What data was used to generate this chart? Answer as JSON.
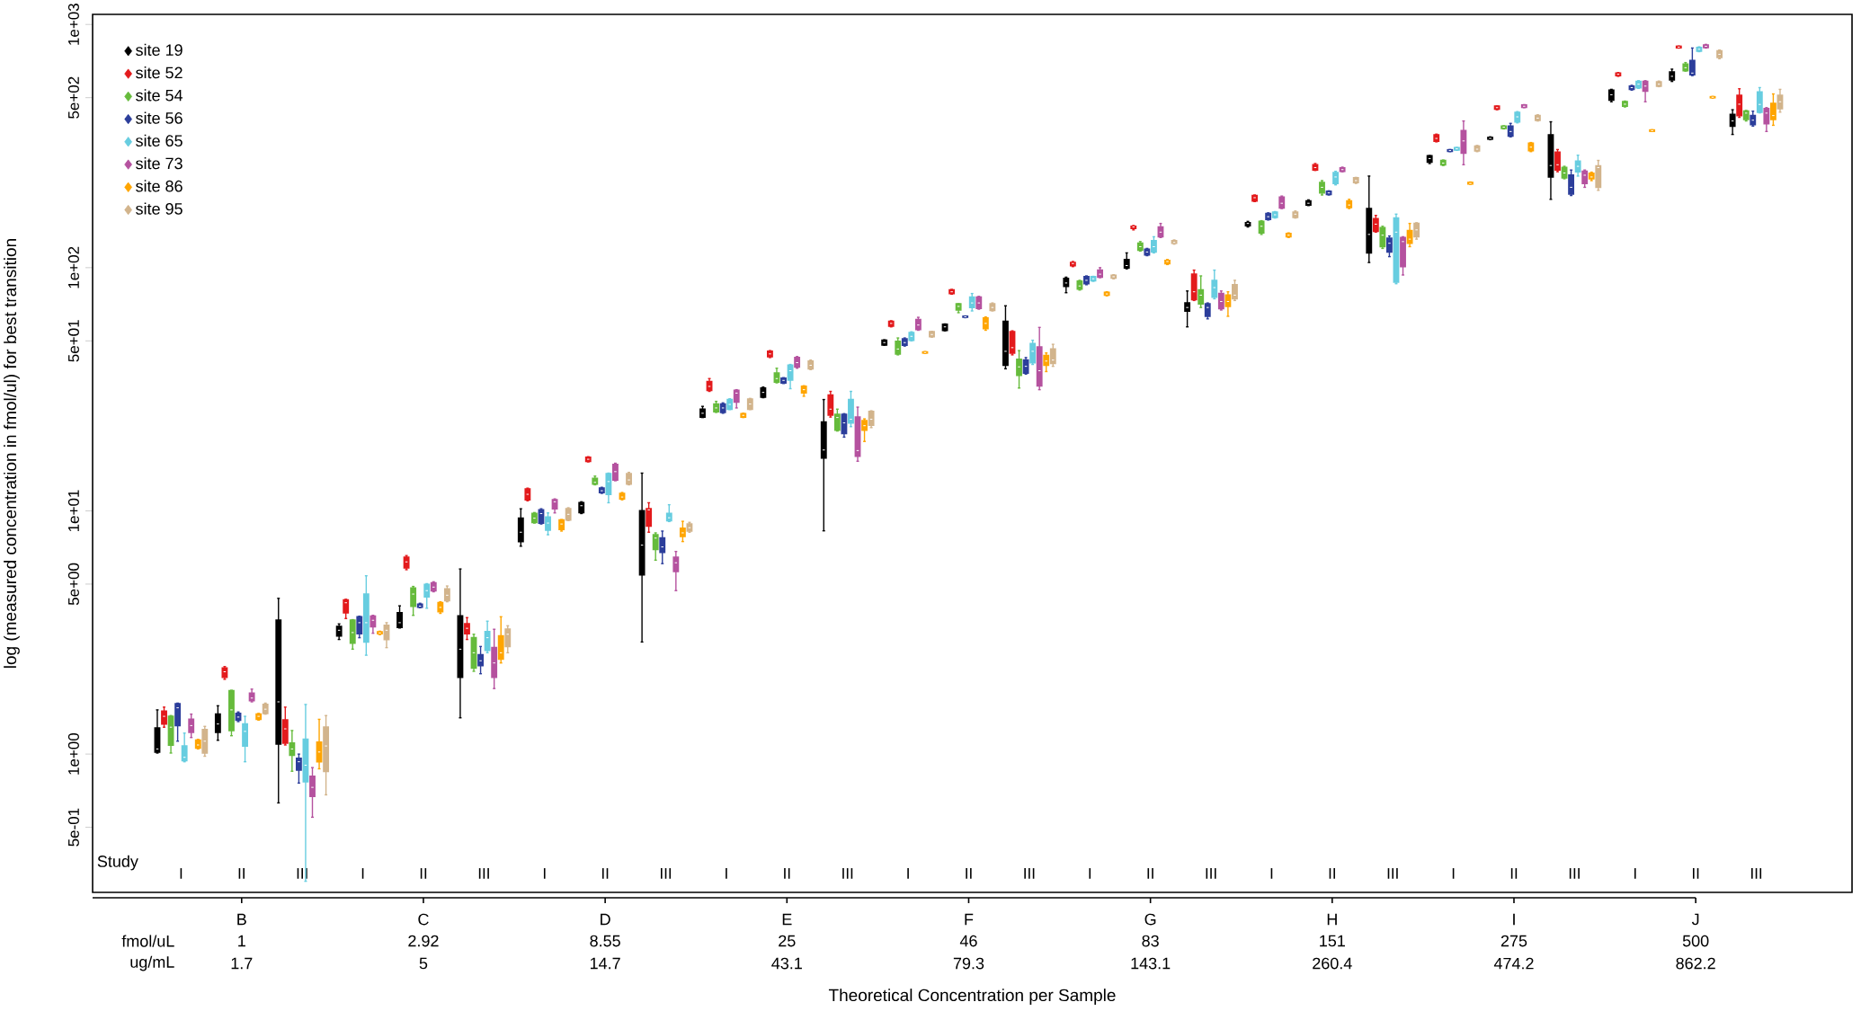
{
  "chart_data": {
    "type": "box",
    "ylabel": "log (measured concentration in fmol/ul) for best transition",
    "categories": [
      "I",
      "II",
      "III",
      "I",
      "II",
      "III",
      "I",
      "II",
      "III",
      "I",
      "II",
      "III",
      "I",
      "II",
      "III",
      "I",
      "II",
      "III",
      "I",
      "II",
      "III",
      "I",
      "II",
      "III",
      "I",
      "II",
      "III"
    ],
    "log": "y",
    "ylim": [
      0.27,
      1100
    ],
    "yticks": [
      {
        "value": 0.5,
        "label": "5e-01"
      },
      {
        "value": 1,
        "label": "1e+00"
      },
      {
        "value": 5,
        "label": "5e+00"
      },
      {
        "value": 10,
        "label": "1e+01"
      },
      {
        "value": 50,
        "label": "5e+01"
      },
      {
        "value": 100,
        "label": "1e+02"
      },
      {
        "value": 500,
        "label": "5e+02"
      },
      {
        "value": 1000,
        "label": "1e+03"
      }
    ],
    "legend": "top left",
    "annotations": [
      "Study",
      "fmol/uL",
      "ug/mL",
      "B",
      "C",
      "D",
      "E",
      "F",
      "G",
      "H",
      "I",
      "J",
      "1",
      "2.92",
      "8.55",
      "25",
      "46",
      "83",
      "151",
      "275",
      "500",
      "1.7",
      "5",
      "14.7",
      "43.1",
      "79.3",
      "143.1",
      "260.4",
      "474.2",
      "862.2",
      "Theoretical Concentration per Sample"
    ],
    "series": [
      {
        "name": "site 19",
        "color": "#000000",
        "boxes": [
          {
            "low": 1.01,
            "q1": 1.02,
            "median": 1.05,
            "q3": 1.28,
            "high": 1.52
          },
          {
            "low": 1.14,
            "q1": 1.23,
            "median": 1.33,
            "q3": 1.46,
            "high": 1.58
          },
          {
            "low": 0.63,
            "q1": 1.1,
            "median": 1.64,
            "q3": 3.55,
            "high": 4.37
          },
          {
            "low": 2.96,
            "q1": 3.06,
            "median": 3.23,
            "q3": 3.35,
            "high": 3.43
          },
          {
            "low": 3.3,
            "q1": 3.32,
            "median": 3.47,
            "q3": 3.81,
            "high": 4.07
          },
          {
            "low": 1.41,
            "q1": 2.07,
            "median": 2.7,
            "q3": 3.7,
            "high": 5.77
          },
          {
            "low": 7.16,
            "q1": 7.48,
            "median": 8.17,
            "q3": 9.33,
            "high": 10.2
          },
          {
            "low": 9.75,
            "q1": 9.84,
            "median": 10.5,
            "q3": 10.8,
            "high": 10.9
          },
          {
            "low": 2.89,
            "q1": 5.46,
            "median": 7.23,
            "q3": 10.0,
            "high": 14.3
          },
          {
            "low": 24.2,
            "q1": 24.3,
            "median": 25.2,
            "q3": 26.2,
            "high": 26.9
          },
          {
            "low": 29.2,
            "q1": 29.4,
            "median": 30.7,
            "q3": 32.0,
            "high": 32.3
          },
          {
            "low": 8.28,
            "q1": 16.5,
            "median": 17.8,
            "q3": 23.2,
            "high": 28.7
          },
          {
            "low": 48.0,
            "q1": 48.1,
            "median": 49.2,
            "q3": 50.3,
            "high": 50.5
          },
          {
            "low": 55.0,
            "q1": 55.3,
            "median": 57.1,
            "q3": 58.5,
            "high": 58.7
          },
          {
            "low": 38.4,
            "q1": 39.7,
            "median": 45.3,
            "q3": 60.1,
            "high": 69.7
          },
          {
            "low": 78.9,
            "q1": 83.8,
            "median": 86.5,
            "q3": 90.3,
            "high": 91.4
          },
          {
            "low": 98.9,
            "q1": 99.8,
            "median": 102,
            "q3": 108,
            "high": 115
          },
          {
            "low": 57.1,
            "q1": 66.4,
            "median": 68.6,
            "q3": 71.6,
            "high": 80.2
          },
          {
            "low": 147,
            "q1": 149,
            "median": 152,
            "q3": 153,
            "high": 155
          },
          {
            "low": 180,
            "q1": 181,
            "median": 184,
            "q3": 188,
            "high": 190
          },
          {
            "low": 105,
            "q1": 115,
            "median": 137,
            "q3": 175,
            "high": 238
          },
          {
            "low": 268,
            "q1": 272,
            "median": 281,
            "q3": 288,
            "high": 289
          },
          {
            "low": 336,
            "q1": 338,
            "median": 340,
            "q3": 343,
            "high": 345
          },
          {
            "low": 191,
            "q1": 236,
            "median": 263,
            "q3": 351,
            "high": 398
          },
          {
            "low": 481,
            "q1": 489,
            "median": 514,
            "q3": 537,
            "high": 541
          },
          {
            "low": 583,
            "q1": 592,
            "median": 612,
            "q3": 638,
            "high": 655
          },
          {
            "low": 353,
            "q1": 382,
            "median": 401,
            "q3": 426,
            "high": 446
          }
        ]
      },
      {
        "name": "site 52",
        "color": "#e31a1c",
        "boxes": [
          {
            "low": 1.29,
            "q1": 1.33,
            "median": 1.43,
            "q3": 1.5,
            "high": 1.56
          },
          {
            "low": 2.03,
            "q1": 2.07,
            "median": 2.18,
            "q3": 2.26,
            "high": 2.29
          },
          {
            "low": 1.09,
            "q1": 1.11,
            "median": 1.27,
            "q3": 1.38,
            "high": 1.56
          },
          {
            "low": 3.61,
            "q1": 3.81,
            "median": 4.19,
            "q3": 4.3,
            "high": 4.33
          },
          {
            "low": 5.73,
            "q1": 5.83,
            "median": 6.17,
            "q3": 6.44,
            "high": 6.55
          },
          {
            "low": 2.96,
            "q1": 3.13,
            "median": 3.29,
            "q3": 3.43,
            "high": 3.64
          },
          {
            "low": 11.0,
            "q1": 11.1,
            "median": 11.7,
            "q3": 12.3,
            "high": 12.4
          },
          {
            "low": 15.9,
            "q1": 16.0,
            "median": 16.3,
            "q3": 16.6,
            "high": 16.7
          },
          {
            "low": 8.17,
            "q1": 8.67,
            "median": 10.1,
            "q3": 10.2,
            "high": 10.8
          },
          {
            "low": 31.0,
            "q1": 31.3,
            "median": 32.5,
            "q3": 34.0,
            "high": 35.0
          },
          {
            "low": 42.7,
            "q1": 43.1,
            "median": 44.2,
            "q3": 45.3,
            "high": 45.6
          },
          {
            "low": 24.3,
            "q1": 24.8,
            "median": 26.2,
            "q3": 29.9,
            "high": 31.0
          },
          {
            "low": 57.1,
            "q1": 57.5,
            "median": 59.0,
            "q3": 60.1,
            "high": 60.5
          },
          {
            "low": 77.8,
            "q1": 78.3,
            "median": 79.6,
            "q3": 80.9,
            "high": 81.4
          },
          {
            "low": 43.8,
            "q1": 44.6,
            "median": 46.9,
            "q3": 54.5,
            "high": 55.0
          },
          {
            "low": 101,
            "q1": 102,
            "median": 104,
            "q3": 105,
            "high": 106
          },
          {
            "low": 143,
            "q1": 145,
            "median": 147,
            "q3": 148,
            "high": 149
          },
          {
            "low": 73.3,
            "q1": 73.9,
            "median": 79.6,
            "q3": 94.0,
            "high": 97.7
          },
          {
            "low": 187,
            "q1": 188,
            "median": 194,
            "q3": 198,
            "high": 199
          },
          {
            "low": 251,
            "q1": 252,
            "median": 258,
            "q3": 265,
            "high": 268
          },
          {
            "low": 140,
            "q1": 141,
            "median": 151,
            "q3": 159,
            "high": 164
          },
          {
            "low": 329,
            "q1": 331,
            "median": 340,
            "q3": 351,
            "high": 354
          },
          {
            "low": 446,
            "q1": 449,
            "median": 455,
            "q3": 461,
            "high": 462
          },
          {
            "low": 248,
            "q1": 252,
            "median": 265,
            "q3": 298,
            "high": 306
          },
          {
            "low": 612,
            "q1": 616,
            "median": 624,
            "q3": 631,
            "high": 634
          },
          {
            "low": 800,
            "q1": 802,
            "median": 807,
            "q3": 813,
            "high": 815
          },
          {
            "low": 415,
            "q1": 422,
            "median": 470,
            "q3": 511,
            "high": 544
          }
        ]
      },
      {
        "name": "site 54",
        "color": "#66bb3c",
        "boxes": [
          {
            "low": 1.01,
            "q1": 1.09,
            "median": 1.29,
            "q3": 1.43,
            "high": 1.44
          },
          {
            "low": 1.19,
            "q1": 1.25,
            "median": 1.52,
            "q3": 1.82,
            "high": 1.83
          },
          {
            "low": 0.85,
            "q1": 0.99,
            "median": 1.05,
            "q3": 1.11,
            "high": 1.25
          },
          {
            "low": 2.7,
            "q1": 2.86,
            "median": 3.16,
            "q3": 3.55,
            "high": 3.57
          },
          {
            "low": 3.72,
            "q1": 4.05,
            "median": 4.55,
            "q3": 4.81,
            "high": 4.89
          },
          {
            "low": 2.19,
            "q1": 2.26,
            "median": 2.61,
            "q3": 3.01,
            "high": 3.11
          },
          {
            "low": 8.91,
            "q1": 8.97,
            "median": 9.33,
            "q3": 9.75,
            "high": 9.84
          },
          {
            "low": 12.8,
            "q1": 12.9,
            "median": 13.1,
            "q3": 13.6,
            "high": 13.9
          },
          {
            "low": 6.27,
            "q1": 6.95,
            "median": 7.73,
            "q3": 7.98,
            "high": 8.12
          },
          {
            "low": 25.4,
            "q1": 25.6,
            "median": 26.5,
            "q3": 27.5,
            "high": 28.2
          },
          {
            "low": 33.6,
            "q1": 33.9,
            "median": 35.0,
            "q3": 36.9,
            "high": 38.6
          },
          {
            "low": 21.3,
            "q1": 21.5,
            "median": 24.2,
            "q3": 24.9,
            "high": 26.2
          },
          {
            "low": 43.8,
            "q1": 44.2,
            "median": 46.3,
            "q3": 49.7,
            "high": 51.4
          },
          {
            "low": 65.3,
            "q1": 67.0,
            "median": 69.3,
            "q3": 71.0,
            "high": 71.1
          },
          {
            "low": 32.0,
            "q1": 36.1,
            "median": 39.1,
            "q3": 42.0,
            "high": 45.6
          },
          {
            "low": 80.9,
            "q1": 81.7,
            "median": 84.1,
            "q3": 87.9,
            "high": 88.7
          },
          {
            "low": 117,
            "q1": 118,
            "median": 122,
            "q3": 126,
            "high": 128
          },
          {
            "low": 68.6,
            "q1": 71.0,
            "median": 77.1,
            "q3": 80.9,
            "high": 92.5
          },
          {
            "low": 137,
            "q1": 139,
            "median": 148,
            "q3": 155,
            "high": 156
          },
          {
            "low": 199,
            "q1": 203,
            "median": 214,
            "q3": 224,
            "high": 228
          },
          {
            "low": 120,
            "q1": 122,
            "median": 136,
            "q3": 146,
            "high": 148
          },
          {
            "low": 263,
            "q1": 265,
            "median": 269,
            "q3": 276,
            "high": 277
          },
          {
            "low": 372,
            "q1": 374,
            "median": 378,
            "q3": 382,
            "high": 383
          },
          {
            "low": 232,
            "q1": 234,
            "median": 245,
            "q3": 258,
            "high": 261
          },
          {
            "low": 458,
            "q1": 461,
            "median": 470,
            "q3": 481,
            "high": 484
          },
          {
            "low": 643,
            "q1": 646,
            "median": 664,
            "q3": 686,
            "high": 697
          },
          {
            "low": 401,
            "q1": 407,
            "median": 432,
            "q3": 440,
            "high": 443
          }
        ]
      },
      {
        "name": "site 56",
        "color": "#2c3e9b",
        "boxes": [
          {
            "low": 1.13,
            "q1": 1.31,
            "median": 1.55,
            "q3": 1.61,
            "high": 1.62
          },
          {
            "low": 1.36,
            "q1": 1.38,
            "median": 1.42,
            "q3": 1.47,
            "high": 1.49
          },
          {
            "low": 0.76,
            "q1": 0.86,
            "median": 0.93,
            "q3": 0.96,
            "high": 1.0
          },
          {
            "low": 3.01,
            "q1": 3.13,
            "median": 3.47,
            "q3": 3.67,
            "high": 3.69
          },
          {
            "low": 4.0,
            "q1": 4.02,
            "median": 4.06,
            "q3": 4.13,
            "high": 4.17
          },
          {
            "low": 2.14,
            "q1": 2.31,
            "median": 2.42,
            "q3": 2.56,
            "high": 2.77
          },
          {
            "low": 8.83,
            "q1": 8.91,
            "median": 9.75,
            "q3": 10.1,
            "high": 10.2
          },
          {
            "low": 11.8,
            "q1": 11.9,
            "median": 12.1,
            "q3": 12.4,
            "high": 12.5
          },
          {
            "low": 6.07,
            "q1": 6.76,
            "median": 7.11,
            "q3": 7.73,
            "high": 8.26
          },
          {
            "low": 25.2,
            "q1": 25.4,
            "median": 26.5,
            "q3": 27.5,
            "high": 27.8
          },
          {
            "low": 33.4,
            "q1": 33.6,
            "median": 34.4,
            "q3": 35.1,
            "high": 35.3
          },
          {
            "low": 20.1,
            "q1": 20.8,
            "median": 23.0,
            "q3": 24.9,
            "high": 25.1
          },
          {
            "low": 47.6,
            "q1": 48.0,
            "median": 49.2,
            "q3": 50.9,
            "high": 51.4
          },
          {
            "low": 62.3,
            "q1": 62.6,
            "median": 62.8,
            "q3": 63.1,
            "high": 63.3
          },
          {
            "low": 36.5,
            "q1": 36.9,
            "median": 39.3,
            "q3": 41.7,
            "high": 42.7
          },
          {
            "low": 85.1,
            "q1": 85.9,
            "median": 88.7,
            "q3": 91.8,
            "high": 92.5
          },
          {
            "low": 112,
            "q1": 113,
            "median": 116,
            "q3": 119,
            "high": 120
          },
          {
            "low": 61.6,
            "q1": 63.1,
            "median": 68.6,
            "q3": 71.0,
            "high": 71.6
          },
          {
            "low": 157,
            "q1": 158,
            "median": 162,
            "q3": 167,
            "high": 168
          },
          {
            "low": 199,
            "q1": 200,
            "median": 203,
            "q3": 206,
            "high": 207
          },
          {
            "low": 111,
            "q1": 116,
            "median": 126,
            "q3": 132,
            "high": 135
          },
          {
            "low": 300,
            "q1": 301,
            "median": 303,
            "q3": 305,
            "high": 306
          },
          {
            "low": 345,
            "q1": 348,
            "median": 363,
            "q3": 382,
            "high": 392
          },
          {
            "low": 198,
            "q1": 201,
            "median": 214,
            "q3": 240,
            "high": 252
          },
          {
            "low": 537,
            "q1": 541,
            "median": 550,
            "q3": 558,
            "high": 562
          },
          {
            "low": 616,
            "q1": 621,
            "median": 631,
            "q3": 711,
            "high": 800
          },
          {
            "low": 382,
            "q1": 388,
            "median": 404,
            "q3": 422,
            "high": 440
          }
        ]
      },
      {
        "name": "site 65",
        "color": "#67cde0",
        "boxes": [
          {
            "low": 0.93,
            "q1": 0.94,
            "median": 0.97,
            "q3": 1.08,
            "high": 1.22
          },
          {
            "low": 0.93,
            "q1": 1.08,
            "median": 1.24,
            "q3": 1.33,
            "high": 1.43
          },
          {
            "low": 0.3,
            "q1": 0.77,
            "median": 0.9,
            "q3": 1.15,
            "high": 1.6
          },
          {
            "low": 2.55,
            "q1": 2.89,
            "median": 3.47,
            "q3": 4.55,
            "high": 5.41
          },
          {
            "low": 3.98,
            "q1": 4.43,
            "median": 4.7,
            "q3": 4.98,
            "high": 5.02
          },
          {
            "low": 2.61,
            "q1": 2.67,
            "median": 3.01,
            "q3": 3.19,
            "high": 3.52
          },
          {
            "low": 7.98,
            "q1": 8.33,
            "median": 8.91,
            "q3": 9.42,
            "high": 9.81
          },
          {
            "low": 10.8,
            "q1": 11.7,
            "median": 13.2,
            "q3": 14.2,
            "high": 14.3
          },
          {
            "low": 9.04,
            "q1": 9.12,
            "median": 9.37,
            "q3": 9.75,
            "high": 10.6
          },
          {
            "low": 26.1,
            "q1": 26.2,
            "median": 27.4,
            "q3": 28.7,
            "high": 28.9
          },
          {
            "low": 31.8,
            "q1": 34.5,
            "median": 37.7,
            "q3": 39.7,
            "high": 40.0
          },
          {
            "low": 22.2,
            "q1": 23.0,
            "median": 23.8,
            "q3": 28.7,
            "high": 31.0
          },
          {
            "low": 50.0,
            "q1": 50.3,
            "median": 52.2,
            "q3": 54.0,
            "high": 54.5
          },
          {
            "low": 66.4,
            "q1": 68.6,
            "median": 71.6,
            "q3": 75.7,
            "high": 78.3
          },
          {
            "low": 40.0,
            "q1": 40.7,
            "median": 45.3,
            "q3": 48.7,
            "high": 50.3
          },
          {
            "low": 87.9,
            "q1": 88.3,
            "median": 90.0,
            "q3": 91.8,
            "high": 92.1
          },
          {
            "low": 115,
            "q1": 116,
            "median": 122,
            "q3": 129,
            "high": 134
          },
          {
            "low": 74.5,
            "q1": 75.7,
            "median": 82.8,
            "q3": 88.5,
            "high": 97.7
          },
          {
            "low": 160,
            "q1": 161,
            "median": 165,
            "q3": 169,
            "high": 170
          },
          {
            "low": 219,
            "q1": 222,
            "median": 236,
            "q3": 246,
            "high": 249
          },
          {
            "low": 85.9,
            "q1": 87.3,
            "median": 140,
            "q3": 160,
            "high": 166
          },
          {
            "low": 304,
            "q1": 305,
            "median": 308,
            "q3": 311,
            "high": 312
          },
          {
            "low": 394,
            "q1": 398,
            "median": 417,
            "q3": 435,
            "high": 438
          },
          {
            "low": 238,
            "q1": 248,
            "median": 261,
            "q3": 274,
            "high": 290
          },
          {
            "low": 546,
            "q1": 550,
            "median": 568,
            "q3": 583,
            "high": 587
          },
          {
            "low": 773,
            "q1": 778,
            "median": 791,
            "q3": 804,
            "high": 809
          },
          {
            "low": 433,
            "q1": 436,
            "median": 469,
            "q3": 528,
            "high": 550
          }
        ]
      },
      {
        "name": "site 73",
        "color": "#b5529f",
        "boxes": [
          {
            "low": 1.17,
            "q1": 1.23,
            "median": 1.31,
            "q3": 1.39,
            "high": 1.46
          },
          {
            "low": 1.64,
            "q1": 1.66,
            "median": 1.7,
            "q3": 1.78,
            "high": 1.85
          },
          {
            "low": 0.55,
            "q1": 0.67,
            "median": 0.73,
            "q3": 0.81,
            "high": 0.88
          },
          {
            "low": 3.14,
            "q1": 3.34,
            "median": 3.55,
            "q3": 3.69,
            "high": 3.72
          },
          {
            "low": 4.65,
            "q1": 4.7,
            "median": 4.86,
            "q3": 5.06,
            "high": 5.11
          },
          {
            "low": 1.86,
            "q1": 2.07,
            "median": 2.37,
            "q3": 2.74,
            "high": 3.26
          },
          {
            "low": 9.81,
            "q1": 10.2,
            "median": 10.9,
            "q3": 11.1,
            "high": 11.2
          },
          {
            "low": 13.3,
            "q1": 13.4,
            "median": 14.5,
            "q3": 15.5,
            "high": 15.7
          },
          {
            "low": 4.7,
            "q1": 5.64,
            "median": 6.12,
            "q3": 6.44,
            "high": 6.81
          },
          {
            "low": 26.5,
            "q1": 28.0,
            "median": 30.5,
            "q3": 31.3,
            "high": 31.5
          },
          {
            "low": 38.6,
            "q1": 39.1,
            "median": 40.7,
            "q3": 42.7,
            "high": 43.1
          },
          {
            "low": 16.0,
            "q1": 16.8,
            "median": 17.7,
            "q3": 24.3,
            "high": 26.7
          },
          {
            "low": 55.3,
            "q1": 55.7,
            "median": 58.1,
            "q3": 61.1,
            "high": 62.5
          },
          {
            "low": 67.5,
            "q1": 68.1,
            "median": 71.6,
            "q3": 75.7,
            "high": 76.2
          },
          {
            "low": 31.5,
            "q1": 32.7,
            "median": 37.7,
            "q3": 47.2,
            "high": 56.8
          },
          {
            "low": 91.0,
            "q1": 91.4,
            "median": 94.0,
            "q3": 97.7,
            "high": 100
          },
          {
            "low": 133,
            "q1": 134,
            "median": 140,
            "q3": 147,
            "high": 152
          },
          {
            "low": 67.0,
            "q1": 67.9,
            "median": 72.6,
            "q3": 78.3,
            "high": 80.2
          },
          {
            "low": 175,
            "q1": 176,
            "median": 184,
            "q3": 195,
            "high": 197
          },
          {
            "low": 248,
            "q1": 249,
            "median": 253,
            "q3": 257,
            "high": 259
          },
          {
            "low": 93.3,
            "q1": 101,
            "median": 128,
            "q3": 133,
            "high": 134
          },
          {
            "low": 265,
            "q1": 296,
            "median": 332,
            "q3": 366,
            "high": 401
          },
          {
            "low": 455,
            "q1": 457,
            "median": 461,
            "q3": 466,
            "high": 468
          },
          {
            "low": 214,
            "q1": 222,
            "median": 240,
            "q3": 249,
            "high": 252
          },
          {
            "low": 481,
            "q1": 532,
            "median": 558,
            "q3": 583,
            "high": 587
          },
          {
            "low": 800,
            "q1": 804,
            "median": 813,
            "q3": 823,
            "high": 828
          },
          {
            "low": 363,
            "q1": 391,
            "median": 432,
            "q3": 451,
            "high": 455
          }
        ]
      },
      {
        "name": "site 86",
        "color": "#ffa500",
        "boxes": [
          {
            "low": 1.05,
            "q1": 1.06,
            "median": 1.09,
            "q3": 1.14,
            "high": 1.15
          },
          {
            "low": 1.38,
            "q1": 1.39,
            "median": 1.43,
            "q3": 1.46,
            "high": 1.47
          },
          {
            "low": 0.87,
            "q1": 0.93,
            "median": 1.02,
            "q3": 1.12,
            "high": 1.39
          },
          {
            "low": 3.1,
            "q1": 3.13,
            "median": 3.15,
            "q3": 3.18,
            "high": 3.2
          },
          {
            "low": 3.79,
            "q1": 3.85,
            "median": 4.01,
            "q3": 4.19,
            "high": 4.23
          },
          {
            "low": 2.37,
            "q1": 2.46,
            "median": 2.61,
            "q3": 3.06,
            "high": 3.67
          },
          {
            "low": 8.26,
            "q1": 8.39,
            "median": 8.83,
            "q3": 9.18,
            "high": 9.21
          },
          {
            "low": 11.1,
            "q1": 11.2,
            "median": 11.4,
            "q3": 11.8,
            "high": 11.9
          },
          {
            "low": 7.48,
            "q1": 7.85,
            "median": 8.12,
            "q3": 8.48,
            "high": 9.06
          },
          {
            "low": 24.2,
            "q1": 24.3,
            "median": 24.7,
            "q3": 25.1,
            "high": 25.2
          },
          {
            "low": 29.6,
            "q1": 30.6,
            "median": 31.5,
            "q3": 32.5,
            "high": 32.7
          },
          {
            "low": 19.3,
            "q1": 21.5,
            "median": 22.4,
            "q3": 23.5,
            "high": 23.9
          },
          {
            "low": 44.4,
            "q1": 44.6,
            "median": 44.8,
            "q3": 45.0,
            "high": 45.2
          },
          {
            "low": 55.3,
            "q1": 56.2,
            "median": 59.0,
            "q3": 62.1,
            "high": 62.7
          },
          {
            "low": 37.4,
            "q1": 39.7,
            "median": 41.3,
            "q3": 43.5,
            "high": 44.6
          },
          {
            "low": 76.6,
            "q1": 77.1,
            "median": 78.0,
            "q3": 79.1,
            "high": 79.6
          },
          {
            "low": 103,
            "q1": 104,
            "median": 106,
            "q3": 107,
            "high": 108
          },
          {
            "low": 63.1,
            "q1": 69.3,
            "median": 72.6,
            "q3": 77.1,
            "high": 79.6
          },
          {
            "low": 133,
            "q1": 134,
            "median": 136,
            "q3": 138,
            "high": 139
          },
          {
            "low": 175,
            "q1": 177,
            "median": 181,
            "q3": 188,
            "high": 191
          },
          {
            "low": 122,
            "q1": 126,
            "median": 131,
            "q3": 142,
            "high": 152
          },
          {
            "low": 220,
            "q1": 221,
            "median": 222,
            "q3": 224,
            "high": 225
          },
          {
            "low": 300,
            "q1": 303,
            "median": 313,
            "q3": 325,
            "high": 327
          },
          {
            "low": 228,
            "q1": 232,
            "median": 236,
            "q3": 244,
            "high": 247
          },
          {
            "low": 363,
            "q1": 364,
            "median": 366,
            "q3": 368,
            "high": 369
          },
          {
            "low": 498,
            "q1": 500,
            "median": 502,
            "q3": 504,
            "high": 506
          },
          {
            "low": 385,
            "q1": 407,
            "median": 422,
            "q3": 473,
            "high": 518
          }
        ]
      },
      {
        "name": "site 95",
        "color": "#d2b48c",
        "boxes": [
          {
            "low": 0.98,
            "q1": 1.01,
            "median": 1.13,
            "q3": 1.26,
            "high": 1.3
          },
          {
            "low": 1.46,
            "q1": 1.47,
            "median": 1.53,
            "q3": 1.6,
            "high": 1.62
          },
          {
            "low": 0.68,
            "q1": 0.85,
            "median": 1.08,
            "q3": 1.29,
            "high": 1.44
          },
          {
            "low": 2.74,
            "q1": 2.96,
            "median": 3.23,
            "q3": 3.38,
            "high": 3.47
          },
          {
            "low": 4.23,
            "q1": 4.28,
            "median": 4.5,
            "q3": 4.77,
            "high": 4.91
          },
          {
            "low": 2.61,
            "q1": 2.77,
            "median": 3.11,
            "q3": 3.26,
            "high": 3.37
          },
          {
            "low": 9.12,
            "q1": 9.18,
            "median": 9.68,
            "q3": 10.2,
            "high": 10.3
          },
          {
            "low": 12.8,
            "q1": 12.9,
            "median": 13.4,
            "q3": 14.2,
            "high": 14.4
          },
          {
            "low": 8.17,
            "q1": 8.26,
            "median": 8.53,
            "q3": 8.83,
            "high": 8.97
          },
          {
            "low": 26.1,
            "q1": 26.2,
            "median": 27.5,
            "q3": 28.8,
            "high": 29.0
          },
          {
            "low": 38.1,
            "q1": 38.4,
            "median": 39.7,
            "q3": 41.3,
            "high": 41.7
          },
          {
            "low": 22.0,
            "q1": 22.5,
            "median": 23.8,
            "q3": 25.6,
            "high": 25.8
          },
          {
            "low": 51.8,
            "q1": 52.1,
            "median": 53.1,
            "q3": 54.5,
            "high": 54.7
          },
          {
            "low": 66.4,
            "q1": 66.8,
            "median": 68.6,
            "q3": 71.0,
            "high": 71.6
          },
          {
            "low": 39.3,
            "q1": 40.4,
            "median": 41.7,
            "q3": 46.3,
            "high": 48.4
          },
          {
            "low": 90.0,
            "q1": 90.6,
            "median": 91.8,
            "q3": 93.0,
            "high": 93.5
          },
          {
            "low": 125,
            "q1": 126,
            "median": 127,
            "q3": 129,
            "high": 130
          },
          {
            "low": 73.3,
            "q1": 74.5,
            "median": 77.1,
            "q3": 85.1,
            "high": 88.7
          },
          {
            "low": 160,
            "q1": 161,
            "median": 166,
            "q3": 169,
            "high": 171
          },
          {
            "low": 222,
            "q1": 224,
            "median": 228,
            "q3": 234,
            "high": 235
          },
          {
            "low": 131,
            "q1": 134,
            "median": 143,
            "q3": 152,
            "high": 153
          },
          {
            "low": 300,
            "q1": 302,
            "median": 307,
            "q3": 316,
            "high": 318
          },
          {
            "low": 401,
            "q1": 404,
            "median": 412,
            "q3": 422,
            "high": 425
          },
          {
            "low": 208,
            "q1": 214,
            "median": 258,
            "q3": 262,
            "high": 276
          },
          {
            "low": 555,
            "q1": 558,
            "median": 568,
            "q3": 581,
            "high": 585
          },
          {
            "low": 723,
            "q1": 733,
            "median": 754,
            "q3": 778,
            "high": 785
          },
          {
            "low": 436,
            "q1": 451,
            "median": 481,
            "q3": 511,
            "high": 541
          }
        ]
      }
    ]
  }
}
